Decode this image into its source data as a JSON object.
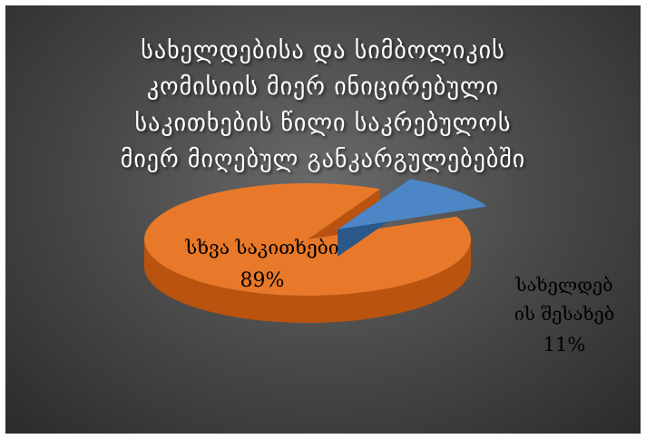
{
  "chart_data": {
    "type": "pie",
    "title": "სახელდებისა და სიმბოლიკის კომისიის მიერ ინიცირებული საკითხების წილი საკრებულოს მიერ მიღებულ განკარგულებებში",
    "title_lines": [
      "სახელდებისა და სიმბოლიკის",
      "კომისიის მიერ ინიცირებული",
      "საკითხების წილი საკრებულოს",
      "მიერ მიღებულ განკარგულებებში"
    ],
    "slices": [
      {
        "name": "სხვა საკითხები",
        "label_lines": [
          "სხვა საკითხები"
        ],
        "value": 89,
        "percent_label": "89%",
        "color": "#E8782A",
        "side_color": "#B9530F"
      },
      {
        "name": "სახელდების შესახებ",
        "label_lines": [
          "სახელდებ",
          "ის შესახებ"
        ],
        "value": 11,
        "percent_label": "11%",
        "color": "#4C86C6",
        "side_color": "#2A5888",
        "exploded": true
      }
    ],
    "style": "3d-exploded",
    "legend": "none"
  }
}
